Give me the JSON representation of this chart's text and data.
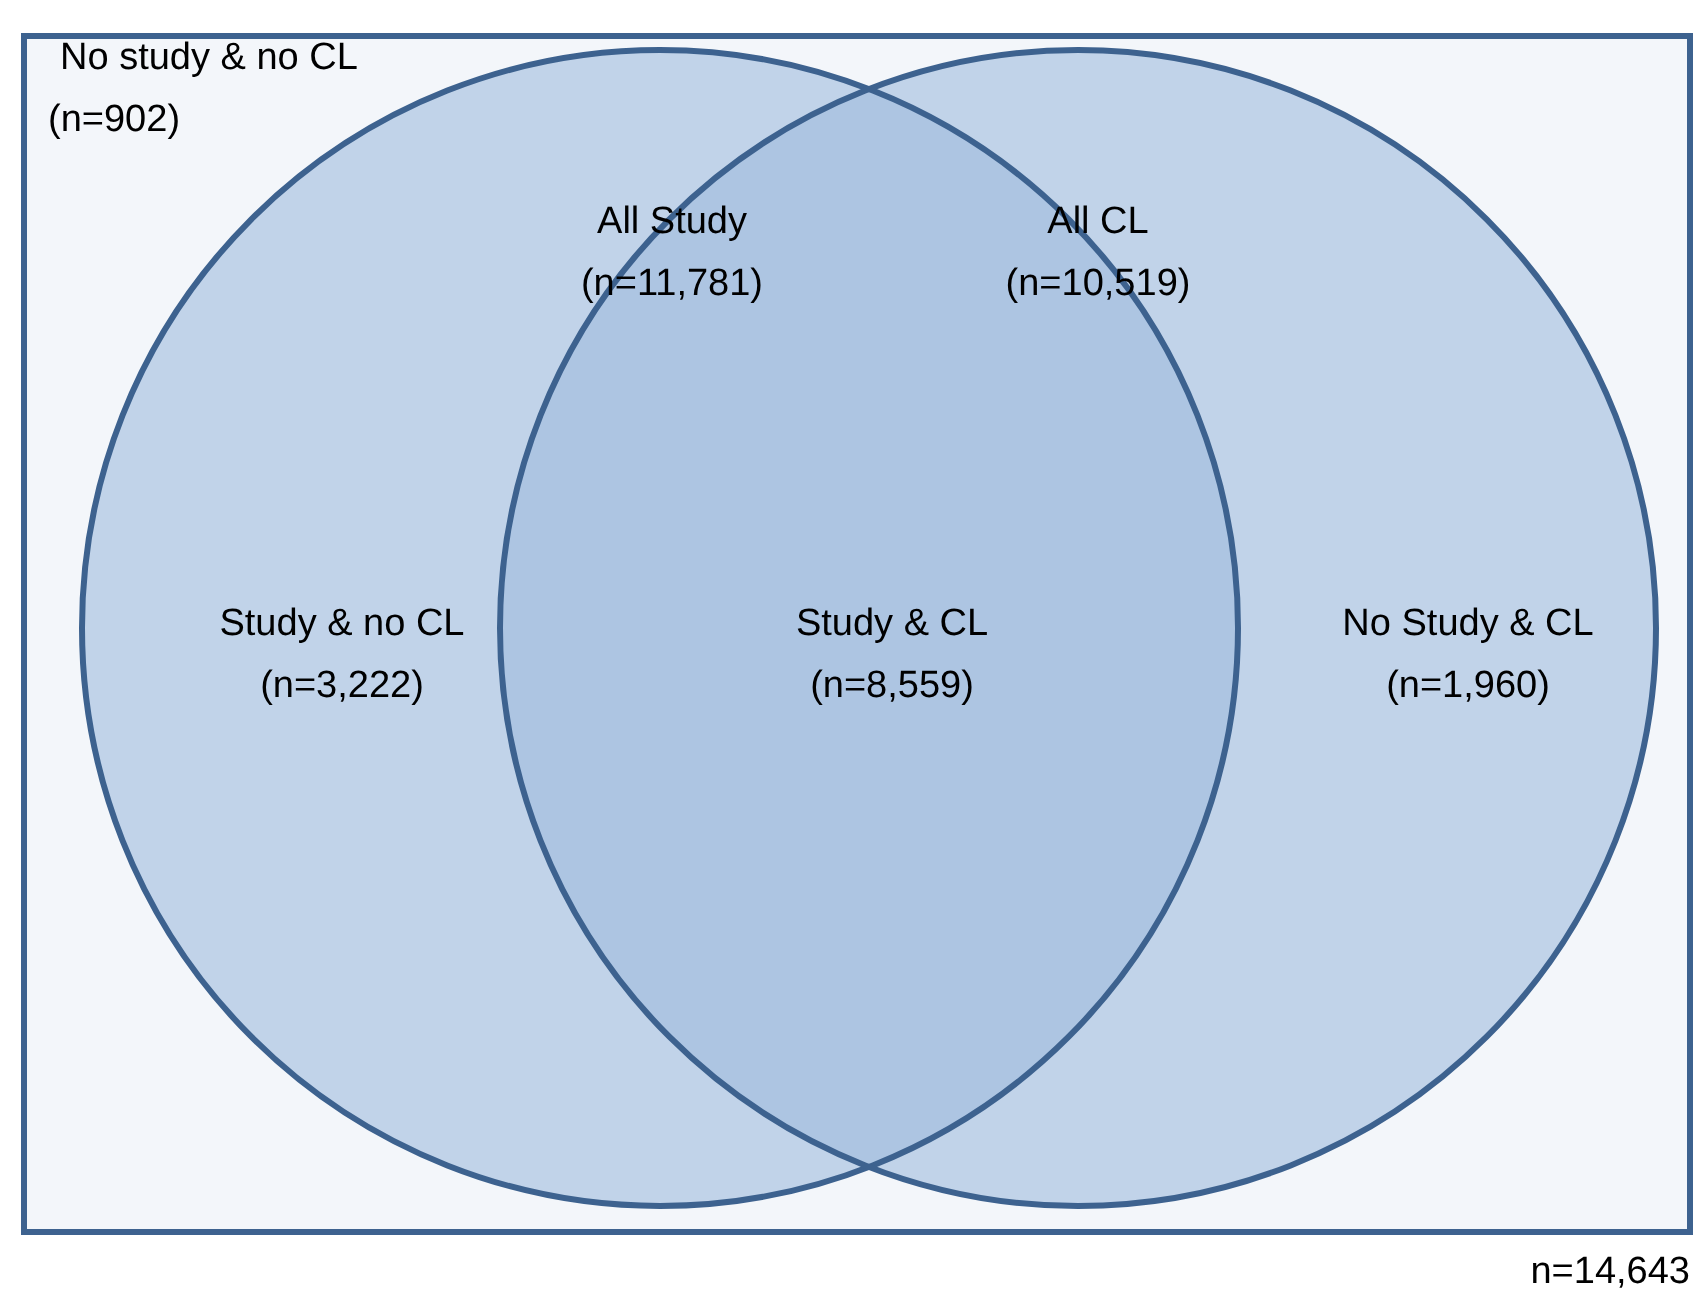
{
  "chart_data": {
    "type": "other",
    "categories": [
      "No study & no CL",
      "All Study",
      "All CL",
      "Study & no CL",
      "Study & CL",
      "No Study & CL"
    ],
    "values": [
      902,
      11781,
      10519,
      3222,
      8559,
      1960
    ],
    "value_labels": [
      "(n=902)",
      "(n=11,781)",
      "(n=10,519)",
      "(n=3,222)",
      "(n=8,559)",
      "(n=1,960)"
    ],
    "annotations": [
      "n=14,643"
    ]
  }
}
